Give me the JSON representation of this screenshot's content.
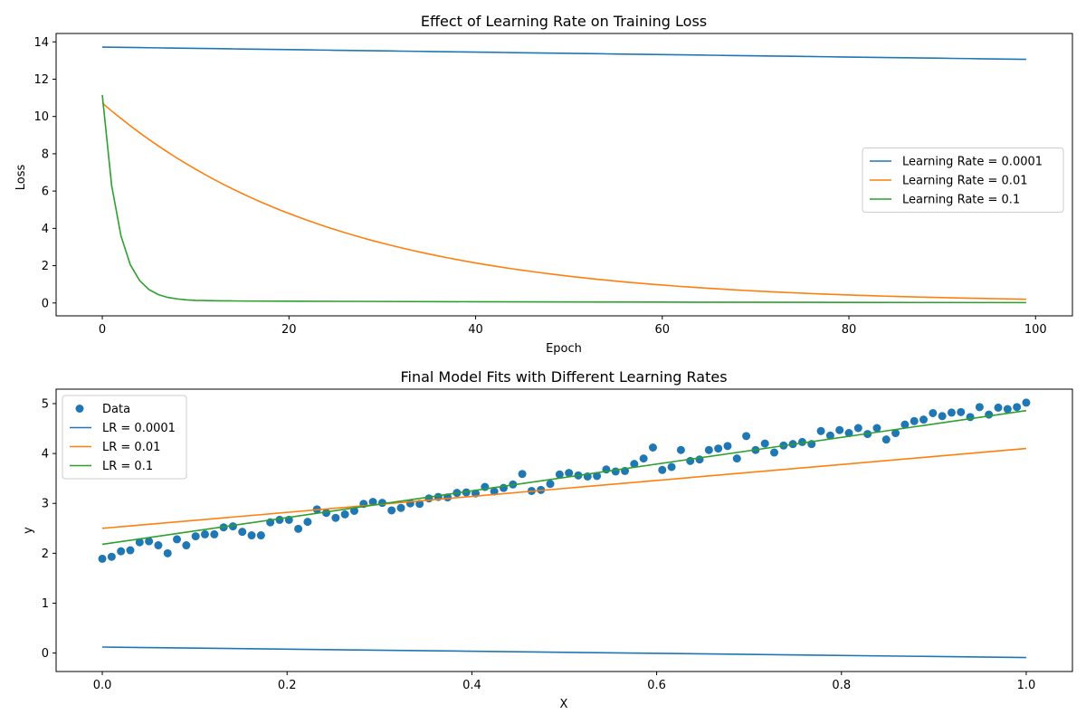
{
  "chart_data": [
    {
      "type": "line",
      "title": "Effect of Learning Rate on Training Loss",
      "xlabel": "Epoch",
      "ylabel": "Loss",
      "xlim": [
        -4.95,
        103.95
      ],
      "ylim": [
        -0.69,
        14.45
      ],
      "xticks": [
        0,
        20,
        40,
        60,
        80,
        100
      ],
      "yticks": [
        0,
        2,
        4,
        6,
        8,
        10,
        12,
        14
      ],
      "grid": false,
      "legend_position": "center-right",
      "series": [
        {
          "name": "Learning Rate = 0.0001",
          "color": "#1f77b4",
          "model": {
            "kind": "exp_decay",
            "a": 13.72,
            "k": 0.000495,
            "c": 0.0
          },
          "x_range": [
            0,
            99
          ]
        },
        {
          "name": "Learning Rate = 0.01",
          "color": "#ff7f0e",
          "model": {
            "kind": "exp_decay",
            "a": 10.72,
            "k": 0.0402,
            "c": 0.0
          },
          "x_range": [
            0,
            99
          ]
        },
        {
          "name": "Learning Rate = 0.1",
          "color": "#2ca02c",
          "x": [
            0,
            1,
            2,
            3,
            4,
            5,
            6,
            7,
            8,
            9,
            10,
            11,
            12,
            13,
            14,
            15,
            20,
            30,
            40,
            60,
            80,
            99
          ],
          "y": [
            11.15,
            6.3,
            3.6,
            2.05,
            1.2,
            0.72,
            0.45,
            0.3,
            0.22,
            0.17,
            0.14,
            0.13,
            0.12,
            0.115,
            0.11,
            0.105,
            0.095,
            0.08,
            0.065,
            0.045,
            0.03,
            0.02
          ]
        }
      ]
    },
    {
      "type": "scatter",
      "title": "Final Model Fits with Different Learning Rates",
      "xlabel": "X",
      "ylabel": "y",
      "xlim": [
        -0.05,
        1.05
      ],
      "ylim": [
        -0.37,
        5.29
      ],
      "xticks": [
        0.0,
        0.2,
        0.4,
        0.6,
        0.8,
        1.0
      ],
      "xtick_labels": [
        "0.0",
        "0.2",
        "0.4",
        "0.6",
        "0.8",
        "1.0"
      ],
      "yticks": [
        0,
        1,
        2,
        3,
        4,
        5
      ],
      "grid": false,
      "legend_position": "upper-left",
      "scatter": {
        "name": "Data",
        "color": "#1f77b4",
        "x_range": [
          0,
          1
        ],
        "count": 100,
        "y": [
          1.89,
          1.93,
          2.04,
          2.06,
          2.22,
          2.24,
          2.16,
          2.0,
          2.28,
          2.16,
          2.34,
          2.38,
          2.38,
          2.52,
          2.54,
          2.43,
          2.36,
          2.36,
          2.62,
          2.67,
          2.67,
          2.49,
          2.63,
          2.88,
          2.81,
          2.71,
          2.78,
          2.85,
          2.99,
          3.03,
          3.01,
          2.86,
          2.91,
          3.0,
          2.99,
          3.1,
          3.13,
          3.12,
          3.21,
          3.22,
          3.2,
          3.33,
          3.24,
          3.31,
          3.38,
          3.59,
          3.25,
          3.27,
          3.39,
          3.58,
          3.61,
          3.56,
          3.54,
          3.55,
          3.68,
          3.64,
          3.65,
          3.79,
          3.9,
          4.12,
          3.67,
          3.73,
          4.07,
          3.85,
          3.88,
          4.07,
          4.1,
          4.15,
          3.9,
          4.35,
          4.07,
          4.2,
          4.02,
          4.16,
          4.19,
          4.23,
          4.19,
          4.45,
          4.36,
          4.47,
          4.41,
          4.51,
          4.39,
          4.51,
          4.28,
          4.41,
          4.58,
          4.65,
          4.68,
          4.81,
          4.75,
          4.82,
          4.83,
          4.73,
          4.93,
          4.78,
          4.92,
          4.89,
          4.93,
          5.02
        ]
      },
      "series": [
        {
          "name": "LR = 0.0001",
          "color": "#1f77b4",
          "x": [
            0,
            1
          ],
          "y": [
            0.12,
            -0.09
          ]
        },
        {
          "name": "LR = 0.01",
          "color": "#ff7f0e",
          "x": [
            0,
            1
          ],
          "y": [
            2.5,
            4.1
          ]
        },
        {
          "name": "LR = 0.1",
          "color": "#2ca02c",
          "x": [
            0,
            1
          ],
          "y": [
            2.18,
            4.86
          ]
        }
      ]
    }
  ]
}
